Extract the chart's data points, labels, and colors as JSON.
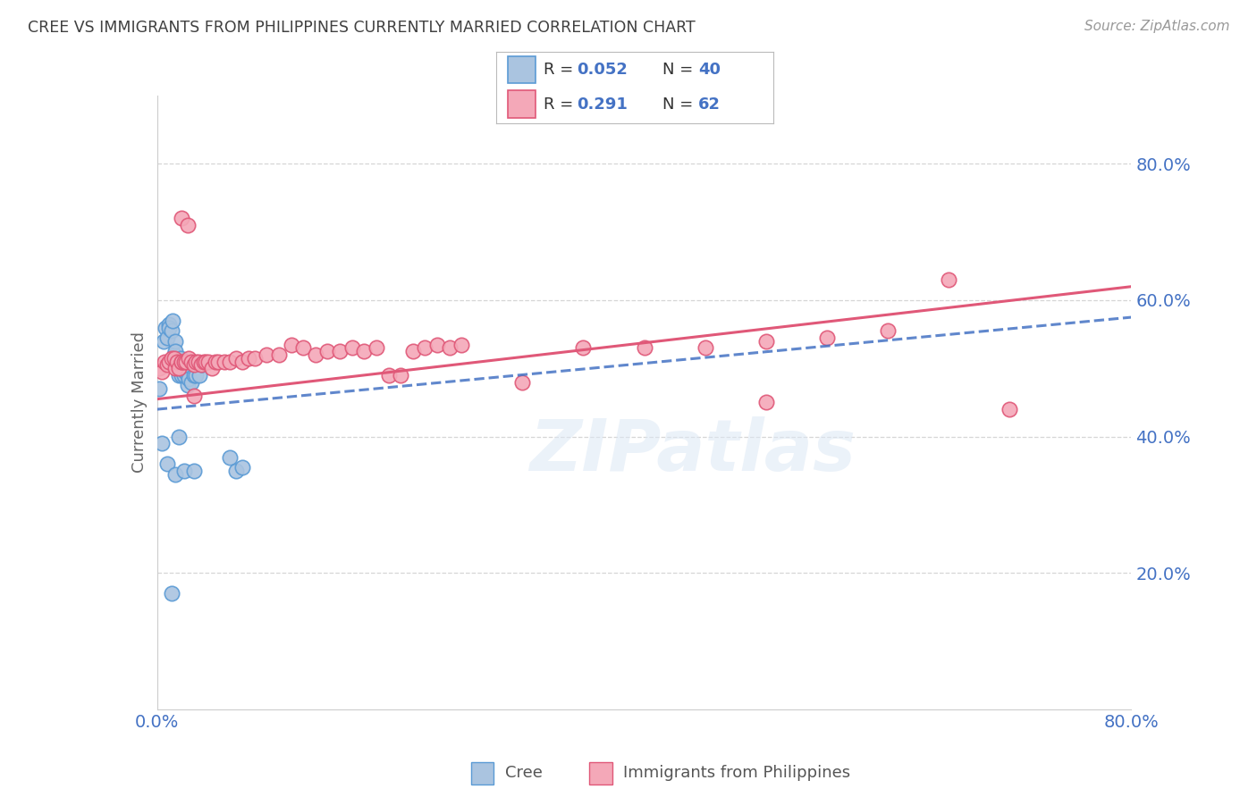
{
  "title": "CREE VS IMMIGRANTS FROM PHILIPPINES CURRENTLY MARRIED CORRELATION CHART",
  "source": "Source: ZipAtlas.com",
  "ylabel": "Currently Married",
  "watermark": "ZIPatlas",
  "cree_color": "#aac4e0",
  "cree_edge_color": "#5b9bd5",
  "phil_color": "#f4a8b8",
  "phil_edge_color": "#e05878",
  "cree_line_color": "#4472c4",
  "phil_line_color": "#e05878",
  "title_color": "#404040",
  "axis_label_color": "#4472c4",
  "legend_r1": "0.052",
  "legend_n1": "40",
  "legend_r2": "0.291",
  "legend_n2": "62",
  "xlim": [
    0.0,
    0.8
  ],
  "ylim": [
    0.0,
    0.9
  ],
  "yticks": [
    0.2,
    0.4,
    0.6,
    0.8
  ],
  "ytick_labels": [
    "20.0%",
    "40.0%",
    "60.0%",
    "80.0%"
  ],
  "xticks": [
    0.0,
    0.1,
    0.2,
    0.3,
    0.4,
    0.5,
    0.6,
    0.7,
    0.8
  ],
  "xtick_labels": [
    "0.0%",
    "",
    "",
    "",
    "",
    "",
    "",
    "",
    "80.0%"
  ],
  "cree_x": [
    0.002,
    0.005,
    0.007,
    0.008,
    0.01,
    0.01,
    0.012,
    0.013,
    0.014,
    0.015,
    0.015,
    0.016,
    0.017,
    0.018,
    0.018,
    0.019,
    0.02,
    0.02,
    0.021,
    0.022,
    0.022,
    0.023,
    0.025,
    0.025,
    0.026,
    0.028,
    0.03,
    0.032,
    0.035,
    0.037,
    0.004,
    0.008,
    0.015,
    0.022,
    0.03,
    0.06,
    0.065,
    0.07,
    0.012,
    0.018
  ],
  "cree_y": [
    0.47,
    0.54,
    0.56,
    0.545,
    0.565,
    0.56,
    0.555,
    0.57,
    0.52,
    0.54,
    0.525,
    0.51,
    0.51,
    0.49,
    0.505,
    0.515,
    0.49,
    0.505,
    0.5,
    0.49,
    0.5,
    0.495,
    0.49,
    0.475,
    0.485,
    0.48,
    0.49,
    0.49,
    0.49,
    0.505,
    0.39,
    0.36,
    0.345,
    0.35,
    0.35,
    0.37,
    0.35,
    0.355,
    0.17,
    0.4
  ],
  "phil_x": [
    0.002,
    0.004,
    0.006,
    0.008,
    0.01,
    0.012,
    0.014,
    0.015,
    0.016,
    0.018,
    0.02,
    0.02,
    0.022,
    0.024,
    0.026,
    0.028,
    0.03,
    0.032,
    0.034,
    0.036,
    0.038,
    0.04,
    0.042,
    0.045,
    0.048,
    0.05,
    0.055,
    0.06,
    0.065,
    0.07,
    0.075,
    0.08,
    0.09,
    0.1,
    0.11,
    0.12,
    0.13,
    0.14,
    0.15,
    0.16,
    0.17,
    0.18,
    0.19,
    0.2,
    0.21,
    0.22,
    0.23,
    0.24,
    0.25,
    0.3,
    0.35,
    0.4,
    0.45,
    0.5,
    0.55,
    0.6,
    0.65,
    0.7,
    0.02,
    0.025,
    0.03,
    0.5
  ],
  "phil_y": [
    0.5,
    0.495,
    0.51,
    0.505,
    0.51,
    0.515,
    0.515,
    0.5,
    0.51,
    0.5,
    0.51,
    0.51,
    0.51,
    0.51,
    0.515,
    0.51,
    0.505,
    0.51,
    0.51,
    0.505,
    0.51,
    0.51,
    0.51,
    0.5,
    0.51,
    0.51,
    0.51,
    0.51,
    0.515,
    0.51,
    0.515,
    0.515,
    0.52,
    0.52,
    0.535,
    0.53,
    0.52,
    0.525,
    0.525,
    0.53,
    0.525,
    0.53,
    0.49,
    0.49,
    0.525,
    0.53,
    0.535,
    0.53,
    0.535,
    0.48,
    0.53,
    0.53,
    0.53,
    0.54,
    0.545,
    0.555,
    0.63,
    0.44,
    0.72,
    0.71,
    0.46,
    0.45
  ]
}
